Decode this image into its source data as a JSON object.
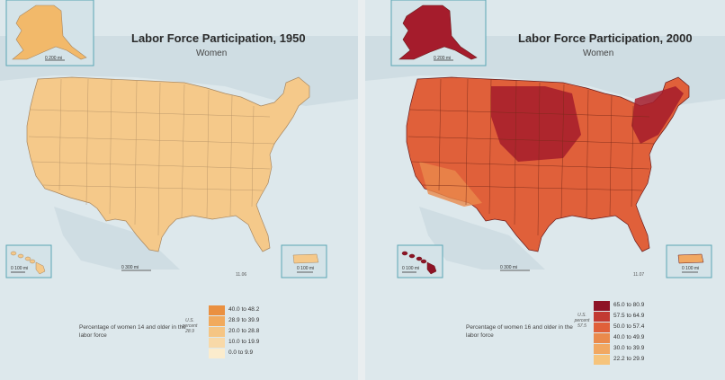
{
  "maps": [
    {
      "title": "Labor Force Participation, 1950",
      "subtitle": "Women",
      "fig_code": "11.06",
      "scale_alaska": "0  200 mi",
      "scale_hawaii": "0  100 mi",
      "scale_main": "0     300 mi",
      "scale_pr": "0  100 mi",
      "fill_color": "#f5c98a",
      "alaska_color": "#f2b96a",
      "legend": {
        "description": "Percentage of women 14 and older in the labor force",
        "avg_line1": "U.S.",
        "avg_line2": "percent",
        "avg_value": "28.9",
        "classes": [
          {
            "label": "40.0 to 48.2",
            "color": "#ea9040"
          },
          {
            "label": "28.9 to 39.9",
            "color": "#f1aa5d"
          },
          {
            "label": "20.0 to 28.8",
            "color": "#f5c584"
          },
          {
            "label": "10.0 to 19.9",
            "color": "#f8d9a8"
          },
          {
            "label": "0.0 to 9.9",
            "color": "#fbeccd"
          }
        ]
      }
    },
    {
      "title": "Labor Force Participation, 2000",
      "subtitle": "Women",
      "fig_code": "11.07",
      "scale_alaska": "0  200 mi",
      "scale_hawaii": "0  100 mi",
      "scale_main": "0     300 mi",
      "scale_pr": "0  100 mi",
      "fill_color": "#e0603a",
      "alaska_color": "#a51c2c",
      "legend": {
        "description": "Percentage of women 16 and older in the labor force",
        "avg_line1": "U.S.",
        "avg_line2": "percent",
        "avg_value": "57.5",
        "classes": [
          {
            "label": "65.0 to 80.9",
            "color": "#8e1326"
          },
          {
            "label": "57.5 to 64.9",
            "color": "#c23a32"
          },
          {
            "label": "50.0 to 57.4",
            "color": "#e0603a"
          },
          {
            "label": "40.0 to 49.9",
            "color": "#ea8a4c"
          },
          {
            "label": "30.0 to 39.9",
            "color": "#f1a862"
          },
          {
            "label": "22.2 to 29.9",
            "color": "#f6c47c"
          }
        ]
      }
    }
  ]
}
